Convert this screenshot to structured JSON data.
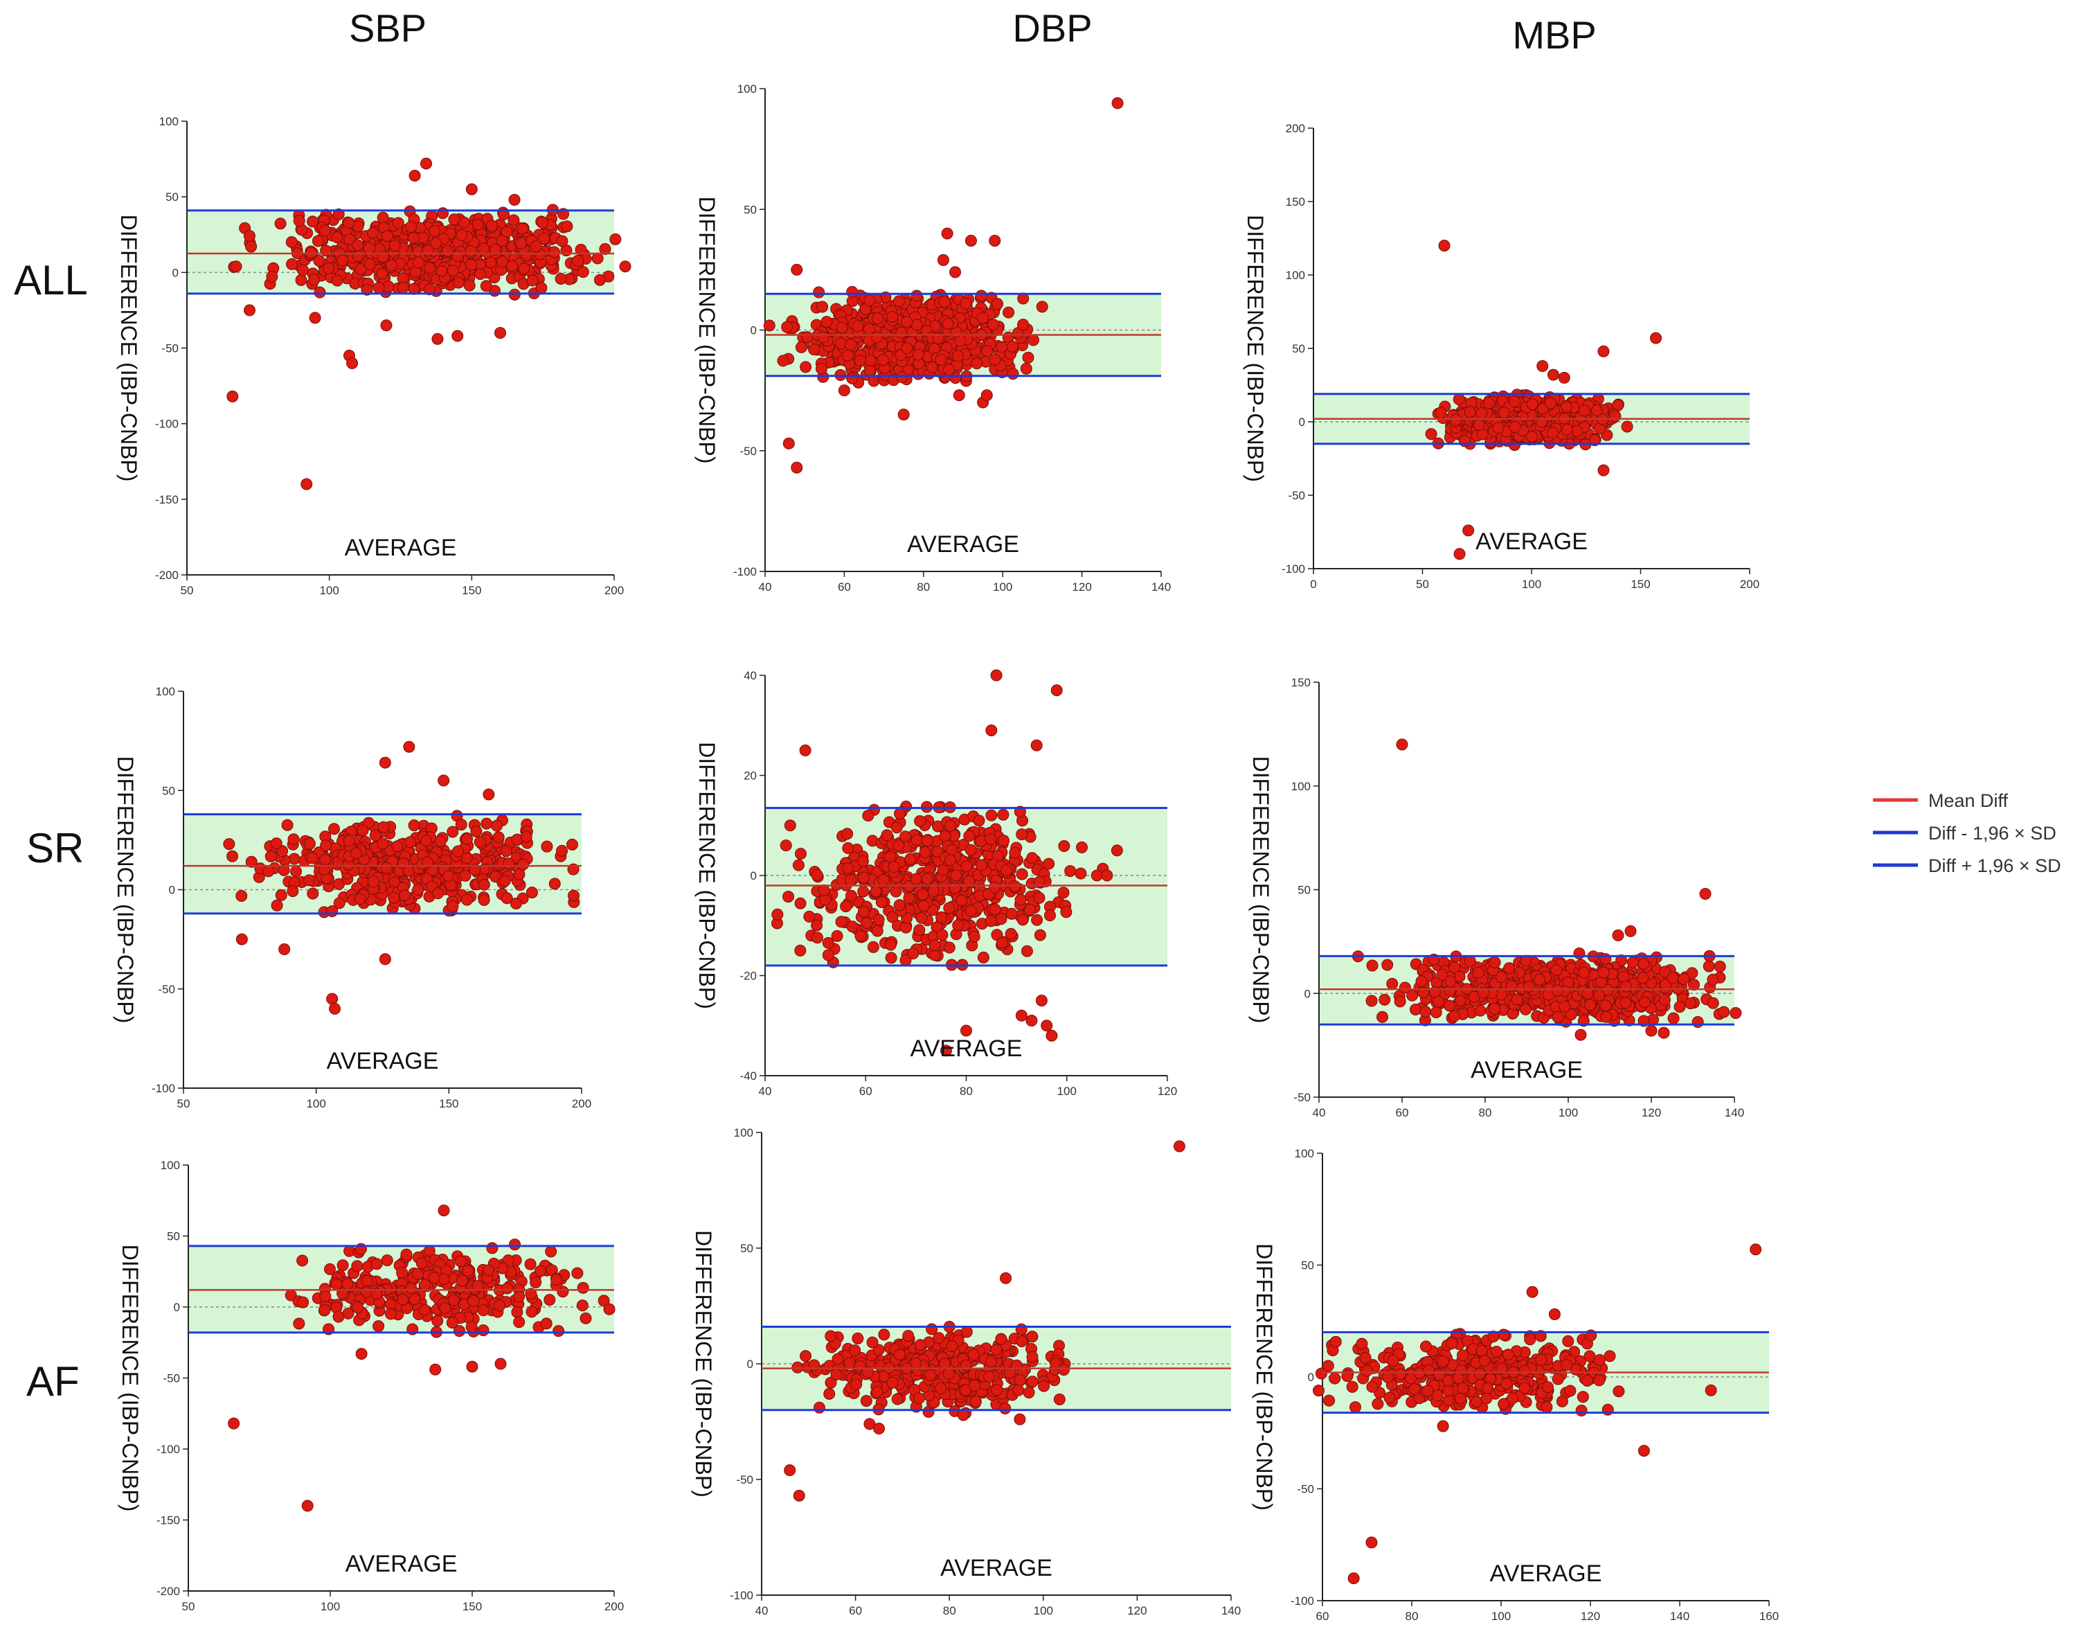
{
  "column_titles": [
    "SBP",
    "DBP",
    "MBP"
  ],
  "row_titles": [
    "ALL",
    "SR",
    "AF"
  ],
  "legend": {
    "items": [
      {
        "label": "Mean Diff",
        "color": "#e53935"
      },
      {
        "label": "Diff - 1,96 × SD",
        "color": "#1f3bd6"
      },
      {
        "label": "Diff + 1,96 × SD",
        "color": "#1f3bd6"
      }
    ]
  },
  "colors": {
    "point_fill": "#dd1a10",
    "point_stroke": "#7a0f0a",
    "band_fill": "#d5f5d5",
    "mean_line": "#c0392b",
    "limit_line": "#1f3bd6",
    "zero_line": "#888888"
  },
  "chart_data": [
    {
      "id": "all-sbp",
      "type": "scatter",
      "row": "ALL",
      "column": "SBP",
      "xlabel": "AVERAGE",
      "ylabel": "DIFFERENCE (IBP-CNBP)",
      "xlim": [
        50,
        200
      ],
      "ylim": [
        -200,
        100
      ],
      "xticks": [
        50,
        100,
        150,
        200
      ],
      "yticks": [
        -200,
        -150,
        -100,
        -50,
        0,
        50,
        100
      ],
      "mean_diff": 12.5,
      "lower_limit": -14,
      "upper_limit": 41,
      "cluster": {
        "x": [
          75,
          195
        ],
        "y": [
          -12,
          38
        ],
        "n": 650,
        "seed": 11
      },
      "outliers": [
        [
          66,
          -82
        ],
        [
          92,
          -140
        ],
        [
          107,
          -55
        ],
        [
          108,
          -60
        ],
        [
          95,
          -30
        ],
        [
          72,
          -25
        ],
        [
          134,
          72
        ],
        [
          130,
          64
        ],
        [
          150,
          55
        ],
        [
          138,
          -44
        ],
        [
          160,
          -40
        ],
        [
          165,
          48
        ],
        [
          145,
          -42
        ],
        [
          120,
          -35
        ],
        [
          195,
          -5
        ]
      ]
    },
    {
      "id": "all-dbp",
      "type": "scatter",
      "row": "ALL",
      "column": "DBP",
      "xlabel": "AVERAGE",
      "ylabel": "DIFFERENCE (IBP-CNBP)",
      "xlim": [
        40,
        140
      ],
      "ylim": [
        -100,
        100
      ],
      "xticks": [
        40,
        60,
        80,
        100,
        120,
        140
      ],
      "yticks": [
        -100,
        -50,
        0,
        50,
        100
      ],
      "mean_diff": -2,
      "lower_limit": -19,
      "upper_limit": 15,
      "cluster": {
        "x": [
          45,
          108
        ],
        "y": [
          -20,
          14
        ],
        "n": 650,
        "seed": 23
      },
      "outliers": [
        [
          129,
          94
        ],
        [
          46,
          -47
        ],
        [
          48,
          -57
        ],
        [
          48,
          25
        ],
        [
          86,
          40
        ],
        [
          92,
          37
        ],
        [
          98,
          37
        ],
        [
          85,
          29
        ],
        [
          88,
          24
        ],
        [
          75,
          -35
        ],
        [
          95,
          -30
        ],
        [
          96,
          -27
        ],
        [
          60,
          -25
        ],
        [
          89,
          -27
        ]
      ]
    },
    {
      "id": "all-mbp",
      "type": "scatter",
      "row": "ALL",
      "column": "MBP",
      "xlabel": "AVERAGE",
      "ylabel": "DIFFERENCE (IBP-CNBP)",
      "xlim": [
        0,
        200
      ],
      "ylim": [
        -100,
        200
      ],
      "xticks": [
        0,
        50,
        100,
        150,
        200
      ],
      "yticks": [
        -100,
        -50,
        0,
        50,
        100,
        150,
        200
      ],
      "mean_diff": 2,
      "lower_limit": -15,
      "upper_limit": 19,
      "cluster": {
        "x": [
          55,
          140
        ],
        "y": [
          -14,
          18
        ],
        "n": 600,
        "seed": 37
      },
      "outliers": [
        [
          60,
          120
        ],
        [
          157,
          57
        ],
        [
          71,
          -74
        ],
        [
          67,
          -90
        ],
        [
          133,
          48
        ],
        [
          133,
          -33
        ],
        [
          105,
          38
        ],
        [
          110,
          32
        ],
        [
          115,
          30
        ]
      ]
    },
    {
      "id": "sr-sbp",
      "type": "scatter",
      "row": "SR",
      "column": "SBP",
      "xlabel": "AVERAGE",
      "ylabel": "DIFFERENCE (IBP-CNBP)",
      "xlim": [
        50,
        200
      ],
      "ylim": [
        -100,
        100
      ],
      "xticks": [
        50,
        100,
        150,
        200
      ],
      "yticks": [
        -100,
        -50,
        0,
        50,
        100
      ],
      "mean_diff": 12,
      "lower_limit": -12,
      "upper_limit": 38,
      "cluster": {
        "x": [
          75,
          195
        ],
        "y": [
          -10,
          36
        ],
        "n": 450,
        "seed": 53
      },
      "outliers": [
        [
          106,
          -55
        ],
        [
          107,
          -60
        ],
        [
          135,
          72
        ],
        [
          126,
          64
        ],
        [
          148,
          55
        ],
        [
          165,
          48
        ],
        [
          72,
          -25
        ],
        [
          88,
          -30
        ],
        [
          126,
          -35
        ],
        [
          197,
          -3
        ]
      ]
    },
    {
      "id": "sr-dbp",
      "type": "scatter",
      "row": "SR",
      "column": "DBP",
      "xlabel": "AVERAGE",
      "ylabel": "DIFFERENCE (IBP-CNBP)",
      "xlim": [
        40,
        120
      ],
      "ylim": [
        -40,
        40
      ],
      "xticks": [
        40,
        60,
        80,
        100,
        120
      ],
      "yticks": [
        -40,
        -20,
        0,
        20,
        40
      ],
      "mean_diff": -2,
      "lower_limit": -18,
      "upper_limit": 13.5,
      "cluster": {
        "x": [
          46,
          102
        ],
        "y": [
          -17,
          13
        ],
        "n": 520,
        "seed": 71
      },
      "outliers": [
        [
          86,
          40
        ],
        [
          98,
          37
        ],
        [
          48,
          25
        ],
        [
          85,
          29
        ],
        [
          94,
          26
        ],
        [
          76,
          -35
        ],
        [
          80,
          -31
        ],
        [
          96,
          -30
        ],
        [
          97,
          -32
        ],
        [
          93,
          -29
        ],
        [
          95,
          -25
        ],
        [
          91,
          -28
        ],
        [
          45,
          10
        ],
        [
          47,
          -15
        ],
        [
          106,
          0
        ],
        [
          108,
          0
        ],
        [
          110,
          5
        ]
      ]
    },
    {
      "id": "sr-mbp",
      "type": "scatter",
      "row": "SR",
      "column": "MBP",
      "xlabel": "AVERAGE",
      "ylabel": "DIFFERENCE (IBP-CNBP)",
      "xlim": [
        40,
        140
      ],
      "ylim": [
        -50,
        150
      ],
      "xticks": [
        40,
        60,
        80,
        100,
        120,
        140
      ],
      "yticks": [
        -50,
        0,
        50,
        100,
        150
      ],
      "mean_diff": 2,
      "lower_limit": -15,
      "upper_limit": 18,
      "cluster": {
        "x": [
          55,
          140
        ],
        "y": [
          -14,
          17
        ],
        "n": 600,
        "seed": 89
      },
      "outliers": [
        [
          60,
          120
        ],
        [
          133,
          48
        ],
        [
          103,
          -20
        ],
        [
          120,
          -18
        ],
        [
          123,
          -19
        ],
        [
          115,
          30
        ],
        [
          112,
          28
        ]
      ]
    },
    {
      "id": "af-sbp",
      "type": "scatter",
      "row": "AF",
      "column": "SBP",
      "xlabel": "AVERAGE",
      "ylabel": "DIFFERENCE (IBP-CNBP)",
      "xlim": [
        50,
        200
      ],
      "ylim": [
        -200,
        100
      ],
      "xticks": [
        50,
        100,
        150,
        200
      ],
      "yticks": [
        -200,
        -150,
        -100,
        -50,
        0,
        50,
        100
      ],
      "mean_diff": 12,
      "lower_limit": -18,
      "upper_limit": 43,
      "cluster": {
        "x": [
          85,
          195
        ],
        "y": [
          -15,
          40
        ],
        "n": 280,
        "seed": 101
      },
      "outliers": [
        [
          66,
          -82
        ],
        [
          92,
          -140
        ],
        [
          140,
          68
        ],
        [
          137,
          -44
        ],
        [
          150,
          -42
        ],
        [
          160,
          -40
        ],
        [
          111,
          -33
        ],
        [
          165,
          44
        ],
        [
          190,
          -8
        ]
      ]
    },
    {
      "id": "af-dbp",
      "type": "scatter",
      "row": "AF",
      "column": "DBP",
      "xlabel": "AVERAGE",
      "ylabel": "DIFFERENCE (IBP-CNBP)",
      "xlim": [
        40,
        140
      ],
      "ylim": [
        -100,
        100
      ],
      "xticks": [
        40,
        60,
        80,
        100,
        120,
        140
      ],
      "yticks": [
        -100,
        -50,
        0,
        50,
        100
      ],
      "mean_diff": -2,
      "lower_limit": -20,
      "upper_limit": 16,
      "cluster": {
        "x": [
          48,
          106
        ],
        "y": [
          -20,
          14
        ],
        "n": 350,
        "seed": 131
      },
      "outliers": [
        [
          129,
          94
        ],
        [
          46,
          -46
        ],
        [
          48,
          -57
        ],
        [
          92,
          37
        ],
        [
          95,
          -24
        ],
        [
          63,
          -26
        ],
        [
          65,
          -28
        ],
        [
          80,
          16
        ]
      ]
    },
    {
      "id": "af-mbp",
      "type": "scatter",
      "row": "AF",
      "column": "MBP",
      "xlabel": "AVERAGE",
      "ylabel": "DIFFERENCE (IBP-CNBP)",
      "xlim": [
        60,
        160
      ],
      "ylim": [
        -100,
        100
      ],
      "xticks": [
        60,
        80,
        100,
        120,
        140,
        160
      ],
      "yticks": [
        -100,
        -50,
        0,
        50,
        100
      ],
      "mean_diff": 2,
      "lower_limit": -16,
      "upper_limit": 20,
      "cluster": {
        "x": [
          62,
          128
        ],
        "y": [
          -14,
          18
        ],
        "n": 350,
        "seed": 151
      },
      "outliers": [
        [
          157,
          57
        ],
        [
          67,
          -90
        ],
        [
          71,
          -74
        ],
        [
          132,
          -33
        ],
        [
          147,
          -6
        ],
        [
          107,
          38
        ],
        [
          112,
          28
        ],
        [
          87,
          -22
        ],
        [
          118,
          -15
        ]
      ]
    }
  ]
}
